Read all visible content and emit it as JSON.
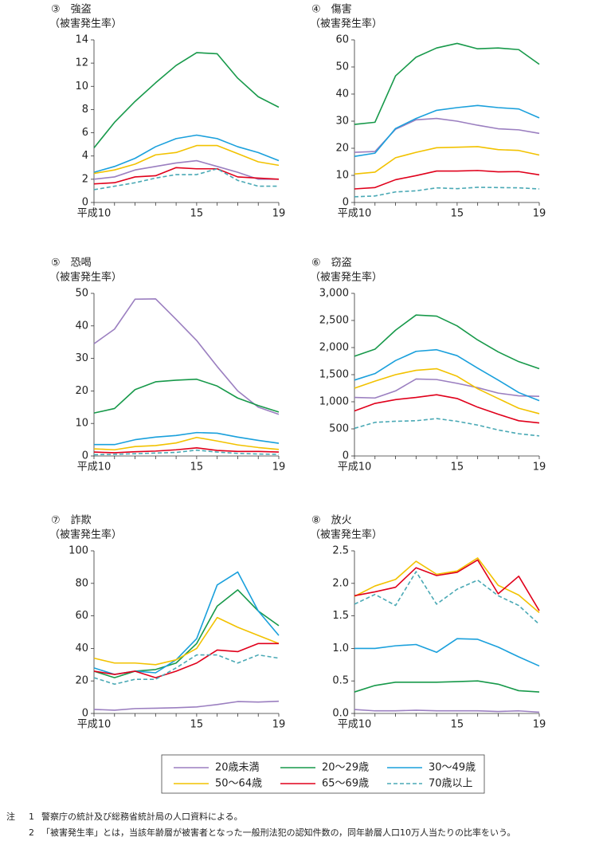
{
  "chart_data": [
    {
      "type": "line",
      "title": "③　強盗",
      "y_label": "（被害発生率）",
      "categories": [
        "平成10",
        null,
        null,
        null,
        null,
        "15",
        null,
        null,
        null,
        "19"
      ],
      "ylim": [
        0,
        14
      ],
      "yticks": [
        0,
        2,
        4,
        6,
        8,
        10,
        12,
        14
      ],
      "series": [
        {
          "values": [
            2.0,
            2.2,
            2.8,
            3.1,
            3.4,
            3.6,
            3.1,
            2.6,
            2.0,
            2.0
          ]
        },
        {
          "values": [
            4.7,
            6.9,
            8.7,
            10.3,
            11.8,
            12.9,
            12.8,
            10.7,
            9.1,
            8.2
          ]
        },
        {
          "values": [
            2.6,
            3.1,
            3.8,
            4.8,
            5.5,
            5.8,
            5.5,
            4.8,
            4.3,
            3.6
          ]
        },
        {
          "values": [
            2.5,
            2.8,
            3.3,
            4.1,
            4.3,
            4.9,
            4.9,
            4.2,
            3.5,
            3.2
          ]
        },
        {
          "values": [
            1.6,
            1.7,
            2.2,
            2.3,
            3.0,
            2.9,
            2.9,
            2.2,
            2.1,
            2.0
          ]
        },
        {
          "values": [
            1.1,
            1.4,
            1.7,
            2.1,
            2.4,
            2.4,
            2.9,
            1.9,
            1.4,
            1.4
          ]
        }
      ]
    },
    {
      "type": "line",
      "title": "④　傷害",
      "y_label": "（被害発生率）",
      "categories": [
        "平成10",
        null,
        null,
        null,
        null,
        "15",
        null,
        null,
        null,
        "19"
      ],
      "ylim": [
        0,
        60
      ],
      "yticks": [
        0,
        10,
        20,
        30,
        40,
        50,
        60
      ],
      "series": [
        {
          "values": [
            18.5,
            18.8,
            27,
            30.5,
            31,
            30,
            28.5,
            27.2,
            26.8,
            25.5
          ]
        },
        {
          "values": [
            28.8,
            29.6,
            46.7,
            53.6,
            57,
            58.7,
            56.7,
            57,
            56.4,
            51
          ]
        },
        {
          "values": [
            17,
            18.2,
            27.3,
            31,
            34,
            35,
            35.8,
            35,
            34.5,
            31.2
          ]
        },
        {
          "values": [
            10.5,
            11.2,
            16.5,
            18.5,
            20.2,
            20.4,
            20.6,
            19.5,
            19.2,
            17.5
          ]
        },
        {
          "values": [
            5,
            5.5,
            8.4,
            9.9,
            11.6,
            11.6,
            11.8,
            11.3,
            11.4,
            10.2
          ]
        },
        {
          "values": [
            2.1,
            2.4,
            3.9,
            4.3,
            5.4,
            5.1,
            5.6,
            5.5,
            5.4,
            5
          ]
        }
      ]
    },
    {
      "type": "line",
      "title": "⑤　恐喝",
      "y_label": "（被害発生率）",
      "categories": [
        "平成10",
        null,
        null,
        null,
        null,
        "15",
        null,
        null,
        null,
        "19"
      ],
      "ylim": [
        0,
        50
      ],
      "yticks": [
        0,
        10,
        20,
        30,
        40,
        50
      ],
      "series": [
        {
          "values": [
            34.5,
            39,
            48.2,
            48.3,
            42,
            35.5,
            27.5,
            20,
            15,
            12.8
          ]
        },
        {
          "values": [
            13.2,
            14.6,
            20.4,
            22.8,
            23.3,
            23.6,
            21.5,
            17.8,
            15.5,
            13.5
          ]
        },
        {
          "values": [
            3.5,
            3.5,
            5,
            5.8,
            6.3,
            7.2,
            7,
            5.8,
            4.8,
            3.9
          ]
        },
        {
          "values": [
            2.2,
            1.9,
            2.9,
            3.2,
            4,
            5.7,
            4.6,
            3.4,
            2.6,
            2.0
          ]
        },
        {
          "values": [
            1.2,
            1,
            1.3,
            1.5,
            1.9,
            2.5,
            1.7,
            1.4,
            1.4,
            1.2
          ]
        },
        {
          "values": [
            0.4,
            0.5,
            0.7,
            0.9,
            1.1,
            1.8,
            1.2,
            0.8,
            0.6,
            0.5
          ]
        }
      ]
    },
    {
      "type": "line",
      "title": "⑥　窃盗",
      "y_label": "（被害発生率）",
      "categories": [
        "平成10",
        null,
        null,
        null,
        null,
        "15",
        null,
        null,
        null,
        "19"
      ],
      "ylim": [
        0,
        3000
      ],
      "yticks": [
        0,
        500,
        {
          "value": 1000,
          "label": "1,000"
        },
        {
          "value": 1500,
          "label": "1,500"
        },
        {
          "value": 2000,
          "label": "2,000"
        },
        {
          "value": 2500,
          "label": "2,500"
        },
        {
          "value": 3000,
          "label": "3,000"
        }
      ],
      "series": [
        {
          "values": [
            1080,
            1070,
            1200,
            1420,
            1410,
            1340,
            1260,
            1160,
            1110,
            1100
          ]
        },
        {
          "values": [
            1840,
            1970,
            2320,
            2600,
            2580,
            2400,
            2140,
            1920,
            1740,
            1610
          ]
        },
        {
          "values": [
            1400,
            1520,
            1760,
            1930,
            1960,
            1850,
            1620,
            1400,
            1170,
            1020
          ]
        },
        {
          "values": [
            1250,
            1380,
            1500,
            1580,
            1610,
            1470,
            1240,
            1060,
            880,
            780
          ]
        },
        {
          "values": [
            830,
            970,
            1040,
            1080,
            1130,
            1060,
            900,
            770,
            650,
            610
          ]
        },
        {
          "values": [
            510,
            620,
            640,
            650,
            690,
            640,
            570,
            480,
            410,
            370
          ]
        }
      ]
    },
    {
      "type": "line",
      "title": "⑦　詐欺",
      "y_label": "（被害発生率）",
      "categories": [
        "平成10",
        null,
        null,
        null,
        null,
        "15",
        null,
        null,
        null,
        "19"
      ],
      "ylim": [
        0,
        100
      ],
      "yticks": [
        0,
        20,
        40,
        60,
        80,
        100
      ],
      "series": [
        {
          "values": [
            2.5,
            2,
            3,
            3.2,
            3.5,
            4,
            5.5,
            7.3,
            7,
            7.5
          ]
        },
        {
          "values": [
            26,
            22,
            26,
            27,
            31,
            43,
            66,
            76,
            63,
            54
          ]
        },
        {
          "values": [
            28,
            24,
            26,
            25,
            33,
            46,
            79,
            87,
            63,
            48
          ]
        },
        {
          "values": [
            34,
            31,
            31,
            30,
            33,
            40,
            59,
            53,
            48,
            43
          ]
        },
        {
          "values": [
            26,
            24,
            26,
            22,
            26,
            31,
            39,
            38,
            43,
            43
          ]
        },
        {
          "values": [
            22,
            18,
            21,
            21,
            28,
            36,
            36,
            31,
            36,
            34
          ]
        }
      ]
    },
    {
      "type": "line",
      "title": "⑧　放火",
      "y_label": "（被害発生率）",
      "categories": [
        "平成10",
        null,
        null,
        null,
        null,
        "15",
        null,
        null,
        null,
        "19"
      ],
      "ylim": [
        0,
        2.5
      ],
      "yticks": [
        {
          "value": 0,
          "label": "0.0"
        },
        0.5,
        {
          "value": 1,
          "label": "1.0"
        },
        1.5,
        {
          "value": 2,
          "label": "2.0"
        },
        2.5
      ],
      "series": [
        {
          "values": [
            0.06,
            0.04,
            0.04,
            0.05,
            0.04,
            0.04,
            0.04,
            0.03,
            0.04,
            0.02
          ]
        },
        {
          "values": [
            0.33,
            0.43,
            0.48,
            0.48,
            0.48,
            0.49,
            0.5,
            0.45,
            0.35,
            0.33
          ]
        },
        {
          "values": [
            1.0,
            1.0,
            1.04,
            1.06,
            0.94,
            1.15,
            1.14,
            1.02,
            0.87,
            0.73
          ]
        },
        {
          "values": [
            1.8,
            1.96,
            2.06,
            2.34,
            2.14,
            2.19,
            2.39,
            1.97,
            1.82,
            1.55
          ]
        },
        {
          "values": [
            1.81,
            1.87,
            1.94,
            2.24,
            2.12,
            2.17,
            2.36,
            1.84,
            2.11,
            1.58
          ]
        },
        {
          "values": [
            1.68,
            1.83,
            1.66,
            2.18,
            1.68,
            1.91,
            2.05,
            1.81,
            1.66,
            1.37
          ]
        }
      ]
    }
  ],
  "legend": [
    {
      "name": "20歳未満",
      "color": "#9b7fc0",
      "dash": false
    },
    {
      "name": "20～29歳",
      "color": "#17994a",
      "dash": false
    },
    {
      "name": "30～49歳",
      "color": "#1aa0dc",
      "dash": false
    },
    {
      "name": "50～64歳",
      "color": "#f2c200",
      "dash": false
    },
    {
      "name": "65～69歳",
      "color": "#e0001b",
      "dash": false
    },
    {
      "name": "70歳以上",
      "color": "#4aa9b5",
      "dash": true
    }
  ],
  "notes": {
    "label": "注",
    "items": [
      {
        "number": "1",
        "text": "警察庁の統計及び総務省統計局の人口資料による。"
      },
      {
        "number": "2",
        "text": "「被害発生率」とは，当該年齢層が被害者となった一般刑法犯の認知件数の，同年齢層人口10万人当たりの比率をいう。"
      }
    ]
  }
}
